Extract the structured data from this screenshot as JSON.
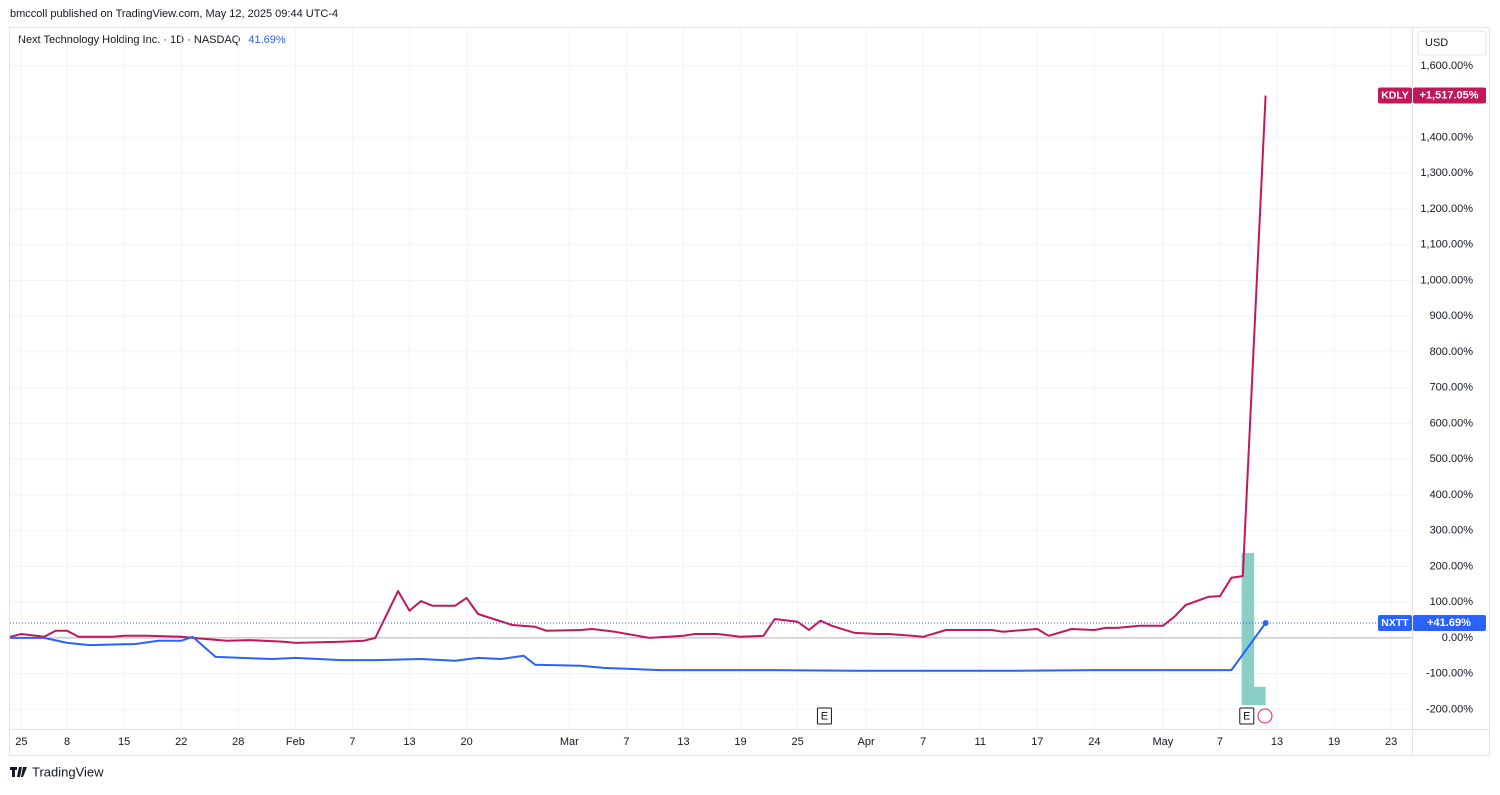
{
  "header": "bmccoll published on TradingView.com, May 12, 2025 09:44 UTC-4",
  "footer": "TradingView",
  "chart_data": {
    "type": "line",
    "title": "Next Technology Holding Inc. · 1D · NASDAQ",
    "legend_value": "41.69%",
    "currency": "USD",
    "xlim": [
      0,
      123
    ],
    "xticks": [
      {
        "value": 1,
        "label": "25"
      },
      {
        "value": 5,
        "label": "8"
      },
      {
        "value": 10,
        "label": "15"
      },
      {
        "value": 15,
        "label": "22"
      },
      {
        "value": 20,
        "label": "28"
      },
      {
        "value": 25,
        "label": "Feb"
      },
      {
        "value": 30,
        "label": "7"
      },
      {
        "value": 35,
        "label": "13"
      },
      {
        "value": 40,
        "label": "20"
      },
      {
        "value": 49,
        "label": "Mar"
      },
      {
        "value": 54,
        "label": "7"
      },
      {
        "value": 59,
        "label": "13"
      },
      {
        "value": 64,
        "label": "19"
      },
      {
        "value": 69,
        "label": "25"
      },
      {
        "value": 75,
        "label": "Apr"
      },
      {
        "value": 80,
        "label": "7"
      },
      {
        "value": 85,
        "label": "11"
      },
      {
        "value": 90,
        "label": "17"
      },
      {
        "value": 95,
        "label": "24"
      },
      {
        "value": 101,
        "label": "May"
      },
      {
        "value": 106,
        "label": "7"
      },
      {
        "value": 111,
        "label": "13"
      },
      {
        "value": 116,
        "label": "19"
      },
      {
        "value": 121,
        "label": "23"
      }
    ],
    "ylim": [
      -252,
      1706
    ],
    "yticks": [
      {
        "value": -200,
        "label": "-200.00%"
      },
      {
        "value": -100,
        "label": "-100.00%"
      },
      {
        "value": 0,
        "label": "0.00%"
      },
      {
        "value": 100,
        "label": "100.00%"
      },
      {
        "value": 200,
        "label": "200.00%"
      },
      {
        "value": 300,
        "label": "300.00%"
      },
      {
        "value": 400,
        "label": "400.00%"
      },
      {
        "value": 500,
        "label": "500.00%"
      },
      {
        "value": 600,
        "label": "600.00%"
      },
      {
        "value": 700,
        "label": "700.00%"
      },
      {
        "value": 800,
        "label": "800.00%"
      },
      {
        "value": 900,
        "label": "900.00%"
      },
      {
        "value": 1000,
        "label": "1,000.00%"
      },
      {
        "value": 1100,
        "label": "1,100.00%"
      },
      {
        "value": 1200,
        "label": "1,200.00%"
      },
      {
        "value": 1300,
        "label": "1,300.00%"
      },
      {
        "value": 1400,
        "label": "1,400.00%"
      },
      {
        "value": 1600,
        "label": "1,600.00%"
      }
    ],
    "grid": true,
    "series": [
      {
        "name": "KDLY",
        "color": "#c2185b",
        "value_label": "+1,517.05%",
        "x": [
          0,
          1,
          3,
          4,
          5,
          6,
          9,
          10,
          12,
          15,
          16,
          19,
          21,
          24,
          25,
          29,
          31,
          32,
          34,
          35,
          36,
          37,
          39,
          40,
          41,
          44,
          46,
          47,
          50,
          51,
          53,
          56,
          59,
          60,
          62,
          64,
          66,
          67,
          69,
          70,
          71,
          72,
          74,
          76,
          77,
          79,
          80,
          82,
          83,
          86,
          87,
          88,
          90,
          91,
          93,
          95,
          96,
          97,
          99,
          101,
          102,
          103,
          105,
          106,
          107,
          108,
          110
        ],
        "values": [
          3,
          11,
          3,
          20,
          20,
          3,
          3,
          6,
          6,
          3,
          0,
          -8,
          -6,
          -11,
          -14,
          -11,
          -8,
          0,
          131,
          76,
          103,
          90,
          90,
          112,
          67,
          36,
          31,
          20,
          22,
          25,
          17,
          0,
          6,
          11,
          11,
          3,
          6,
          53,
          45,
          22,
          48,
          34,
          14,
          11,
          11,
          6,
          3,
          22,
          22,
          22,
          17,
          20,
          25,
          6,
          25,
          22,
          28,
          28,
          34,
          34,
          59,
          92,
          115,
          117,
          168,
          173,
          1517.05
        ]
      },
      {
        "name": "NXTT",
        "color": "#2962ff",
        "value_label": "+41.69%",
        "x": [
          0,
          3,
          5,
          7,
          11,
          13,
          15,
          16,
          18,
          23,
          25,
          29,
          32,
          36,
          39,
          41,
          43,
          45,
          46,
          50,
          52,
          57,
          60,
          67,
          74,
          81,
          87,
          95,
          100,
          107,
          110
        ],
        "values": [
          0,
          0,
          -14,
          -20,
          -17,
          -8,
          -8,
          3,
          -53,
          -59,
          -56,
          -62,
          -62,
          -59,
          -64,
          -56,
          -59,
          -50,
          -75,
          -78,
          -84,
          -90,
          -90,
          -90,
          -92,
          -92,
          -92,
          -90,
          -90,
          -90,
          41.69
        ]
      }
    ],
    "volume": {
      "color": "#89cfc5",
      "x": [
        108,
        109
      ],
      "values": [
        100,
        12
      ]
    },
    "events": [
      {
        "x": 71,
        "label": "E"
      },
      {
        "x": 108,
        "label": "E"
      }
    ]
  }
}
